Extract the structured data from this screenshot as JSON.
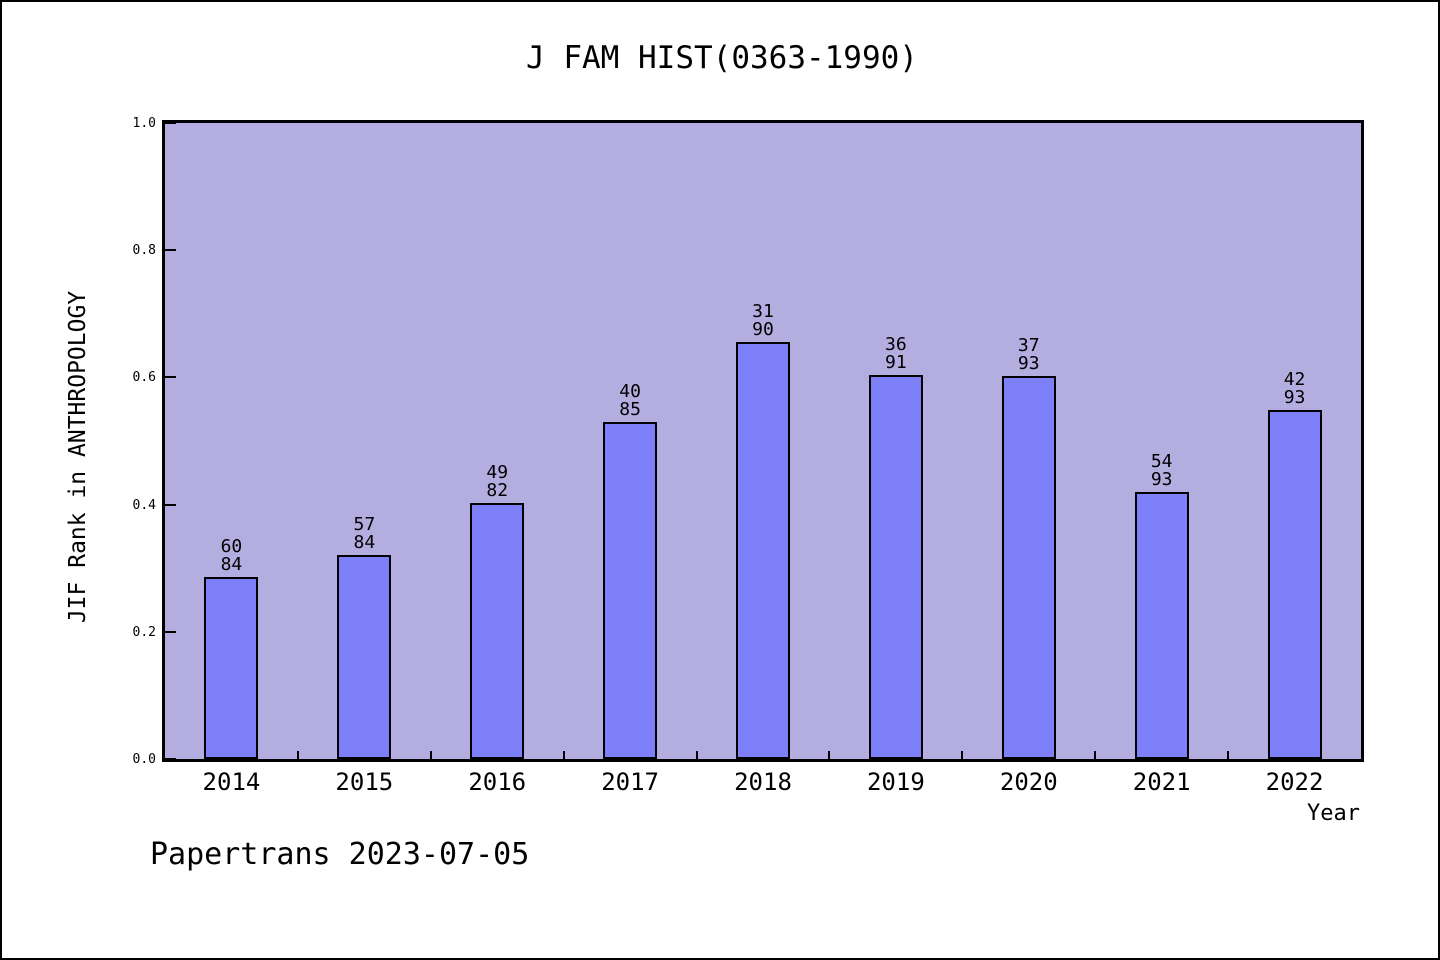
{
  "chart_data": {
    "type": "bar",
    "title": "J FAM HIST(0363-1990)",
    "xlabel": "Year",
    "ylabel": "JIF Rank in ANTHROPOLOGY",
    "categories": [
      "2014",
      "2015",
      "2016",
      "2017",
      "2018",
      "2019",
      "2020",
      "2021",
      "2022"
    ],
    "values": [
      0.2857,
      0.3214,
      0.4024,
      0.5294,
      0.6556,
      0.6044,
      0.6022,
      0.4194,
      0.5484
    ],
    "bar_top_labels": [
      {
        "rank": "60",
        "total": "84"
      },
      {
        "rank": "57",
        "total": "84"
      },
      {
        "rank": "49",
        "total": "82"
      },
      {
        "rank": "40",
        "total": "85"
      },
      {
        "rank": "31",
        "total": "90"
      },
      {
        "rank": "36",
        "total": "91"
      },
      {
        "rank": "37",
        "total": "93"
      },
      {
        "rank": "54",
        "total": "93"
      },
      {
        "rank": "42",
        "total": "93"
      }
    ],
    "ylim": [
      0.0,
      1.0
    ],
    "yticks": [
      "0.0",
      "0.2",
      "0.4",
      "0.6",
      "0.8",
      "1.0"
    ],
    "grid": false,
    "legend": "none",
    "colors": {
      "plot_bg": "#b3ade0",
      "bar_fill": "#7d80f8",
      "bar_edge": "#000000",
      "axis": "#000000",
      "text": "#000000",
      "page_bg": "#ffffff"
    }
  },
  "footer": {
    "label": "Papertrans 2023-07-05"
  }
}
